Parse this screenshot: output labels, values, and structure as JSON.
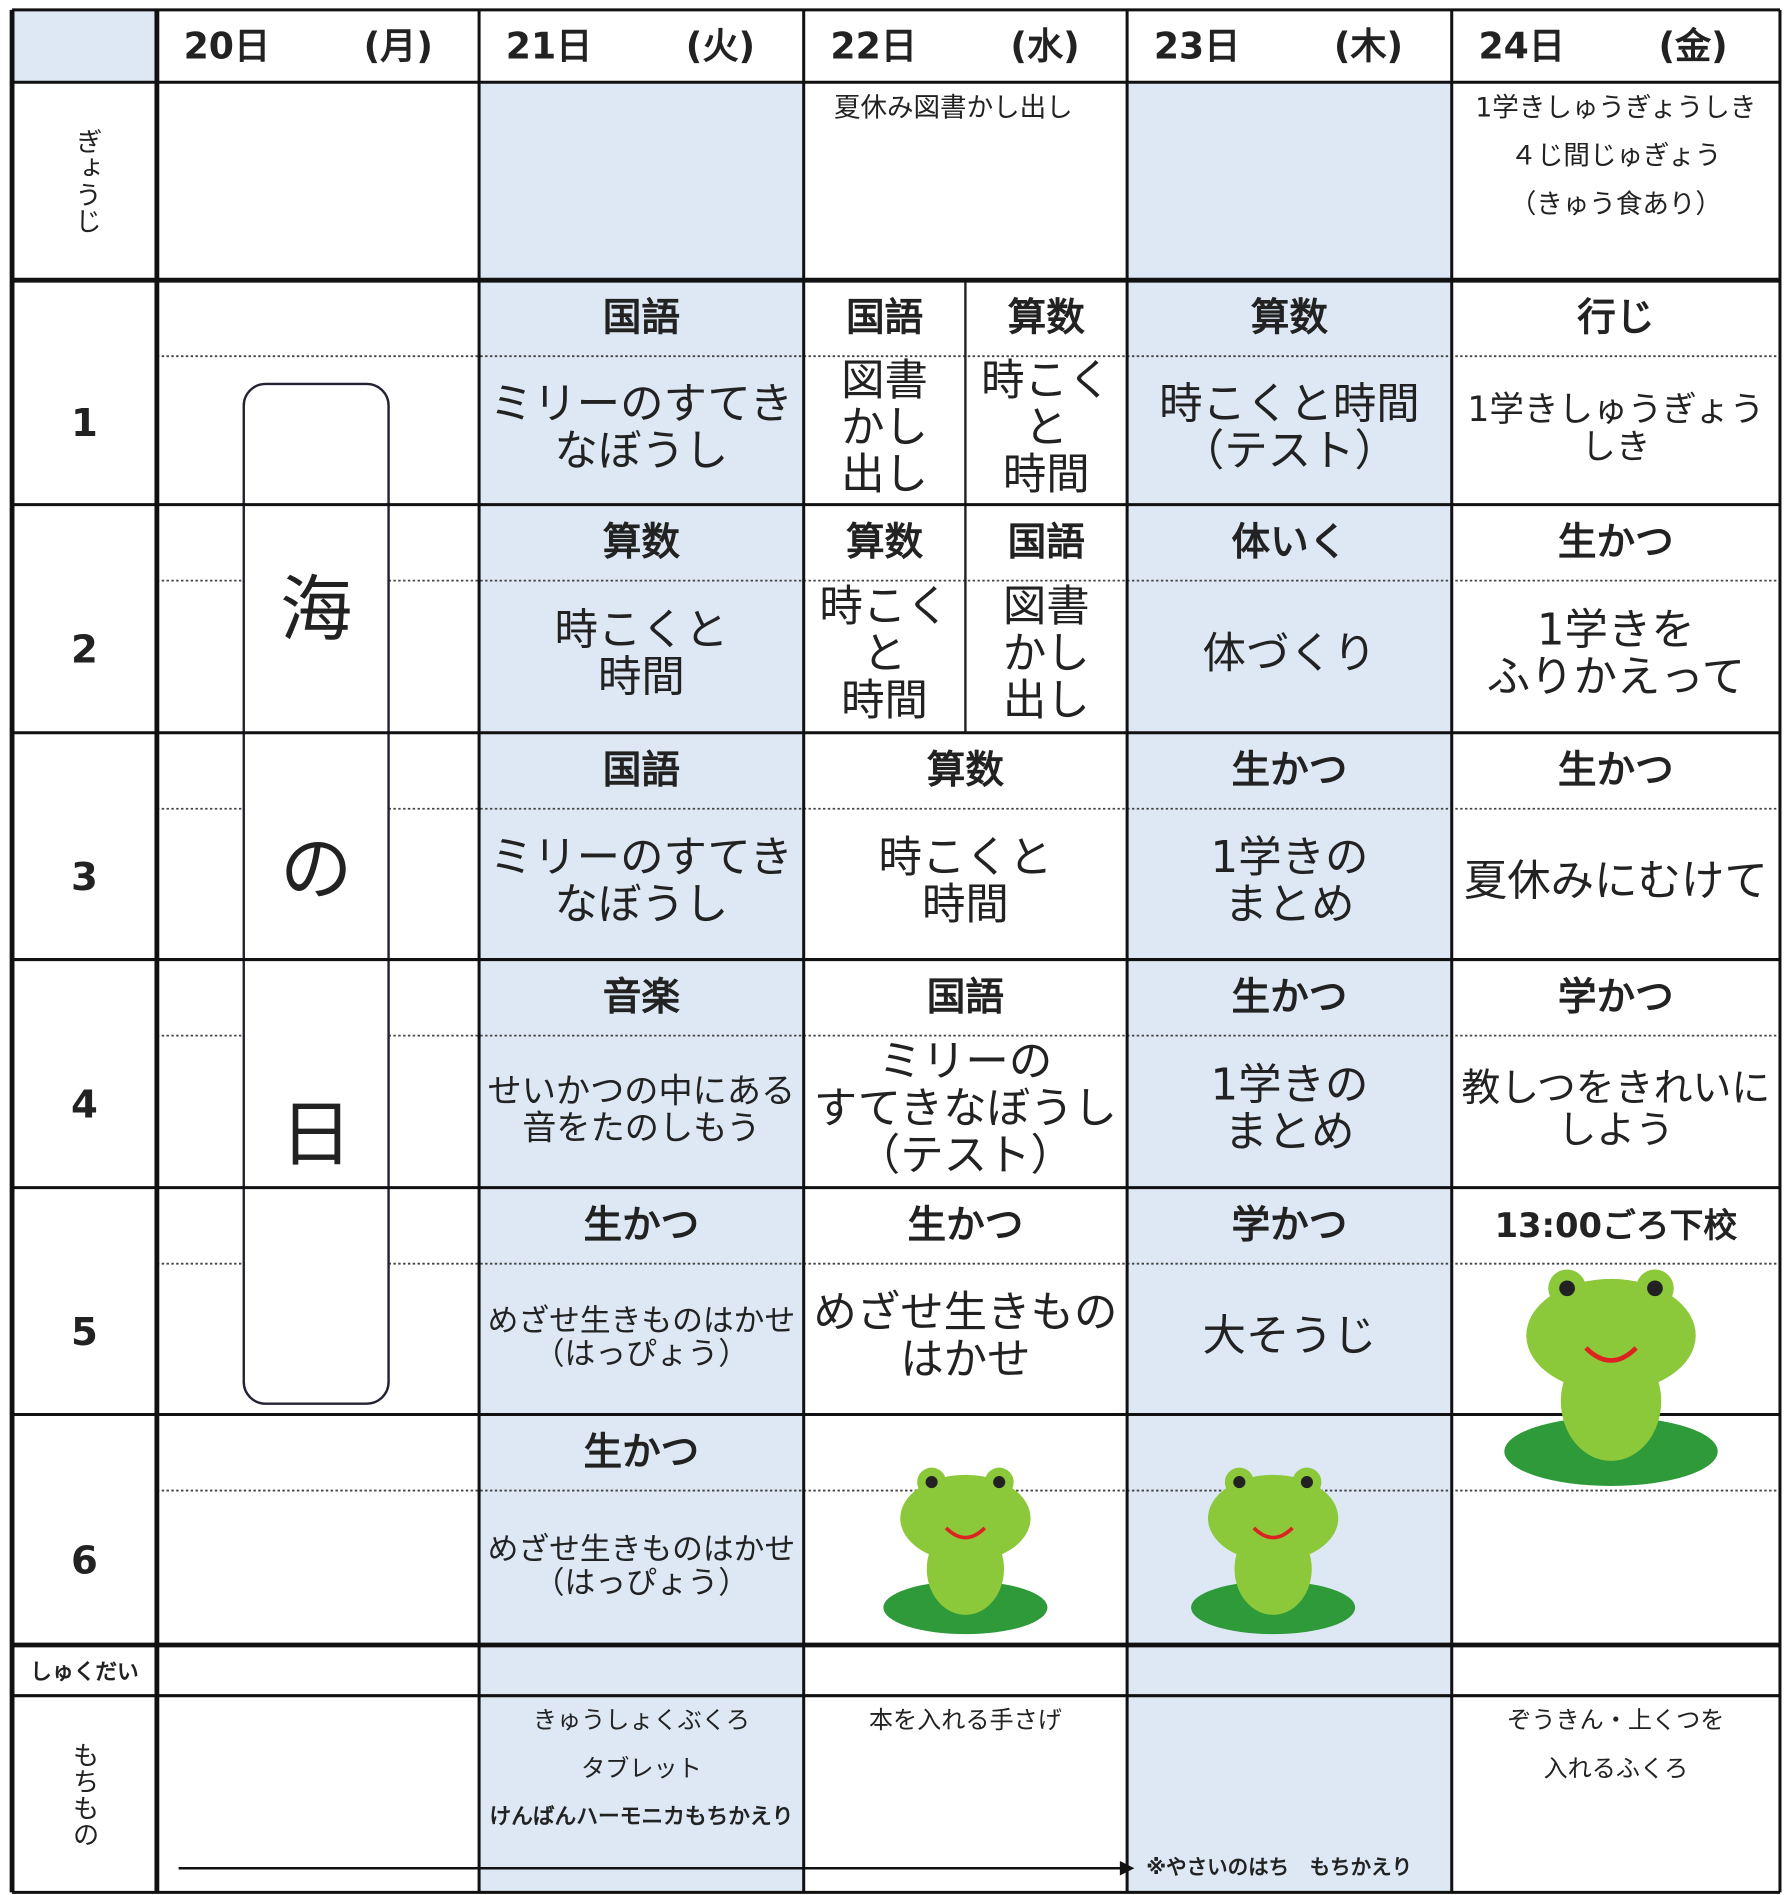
{
  "header": {
    "days": [
      {
        "date": "20日",
        "dow": "(月)"
      },
      {
        "date": "21日",
        "dow": "(火)"
      },
      {
        "date": "22日",
        "dow": "(水)"
      },
      {
        "date": "23日",
        "dow": "(木)"
      },
      {
        "date": "24日",
        "dow": "(金)"
      }
    ]
  },
  "gyouji": {
    "label": "ぎょうじ",
    "cells": [
      null,
      null,
      [
        "夏休み図書かし出し"
      ],
      null,
      [
        "1学きしゅうぎょうしき",
        "４じ間じゅぎょう",
        "（きゅう食あり）"
      ]
    ]
  },
  "periods": [
    {
      "label": "1",
      "cells": [
        null,
        {
          "subject": "国語",
          "lines": [
            "ミリーのすてき",
            "なぼうし"
          ]
        },
        [
          {
            "subject": "国語",
            "lines": [
              "図書",
              "かし",
              "出し"
            ]
          },
          {
            "subject": "算数",
            "lines": [
              "時こく",
              "と",
              "時間"
            ]
          }
        ],
        {
          "subject": "算数",
          "lines": [
            "時こくと時間",
            "（テスト）"
          ]
        },
        {
          "subject": "行じ",
          "lines": [
            "1学きしゅうぎょう",
            "しき"
          ]
        }
      ]
    },
    {
      "label": "2",
      "cells": [
        null,
        {
          "subject": "算数",
          "lines": [
            "時こくと",
            "時間"
          ]
        },
        [
          {
            "subject": "算数",
            "lines": [
              "時こく",
              "と",
              "時間"
            ]
          },
          {
            "subject": "国語",
            "lines": [
              "図書",
              "かし",
              "出し"
            ]
          }
        ],
        {
          "subject": "体いく",
          "lines": [
            "体づくり"
          ]
        },
        {
          "subject": "生かつ",
          "lines": [
            "1学きを",
            "ふりかえって"
          ]
        }
      ]
    },
    {
      "label": "3",
      "cells": [
        null,
        {
          "subject": "国語",
          "lines": [
            "ミリーのすてき",
            "なぼうし"
          ]
        },
        {
          "subject": "算数",
          "lines": [
            "時こくと",
            "時間"
          ]
        },
        {
          "subject": "生かつ",
          "lines": [
            "1学きの",
            "まとめ"
          ]
        },
        {
          "subject": "生かつ",
          "lines": [
            "夏休みにむけて"
          ]
        }
      ]
    },
    {
      "label": "4",
      "cells": [
        null,
        {
          "subject": "音楽",
          "lines": [
            "せいかつの中にある",
            "音をたのしもう"
          ]
        },
        {
          "subject": "国語",
          "lines": [
            "ミリーの",
            "すてきなぼうし",
            "（テスト）"
          ]
        },
        {
          "subject": "生かつ",
          "lines": [
            "1学きの",
            "まとめ"
          ]
        },
        {
          "subject": "学かつ",
          "lines": [
            "教しつをきれいに",
            "しよう"
          ]
        }
      ]
    },
    {
      "label": "5",
      "cells": [
        null,
        {
          "subject": "生かつ",
          "lines": [
            "めざせ生きものはかせ",
            "（はっぴょう）"
          ]
        },
        {
          "subject": "生かつ",
          "lines": [
            "めざせ生きもの",
            "はかせ"
          ]
        },
        {
          "subject": "学かつ",
          "lines": [
            "大そうじ"
          ]
        },
        {
          "subject": "13:00ごろ下校",
          "lines": []
        }
      ]
    },
    {
      "label": "6",
      "cells": [
        null,
        {
          "subject": "生かつ",
          "lines": [
            "めざせ生きものはかせ",
            "（はっぴょう）"
          ]
        },
        null,
        null,
        null
      ]
    }
  ],
  "umi_no_hi": [
    "海",
    "の",
    "日"
  ],
  "shukudai": {
    "label": "しゅくだい"
  },
  "mochimono": {
    "label": "もちもの",
    "cells": [
      null,
      [
        "きゅうしょくぶくろ",
        "タブレット",
        "けんばんハーモニカもちかえり"
      ],
      [
        "本を入れる手さげ"
      ],
      null,
      [
        "ぞうきん・上くつを",
        "入れるふくろ"
      ]
    ],
    "note": "※やさいのはち　もちかえり"
  }
}
